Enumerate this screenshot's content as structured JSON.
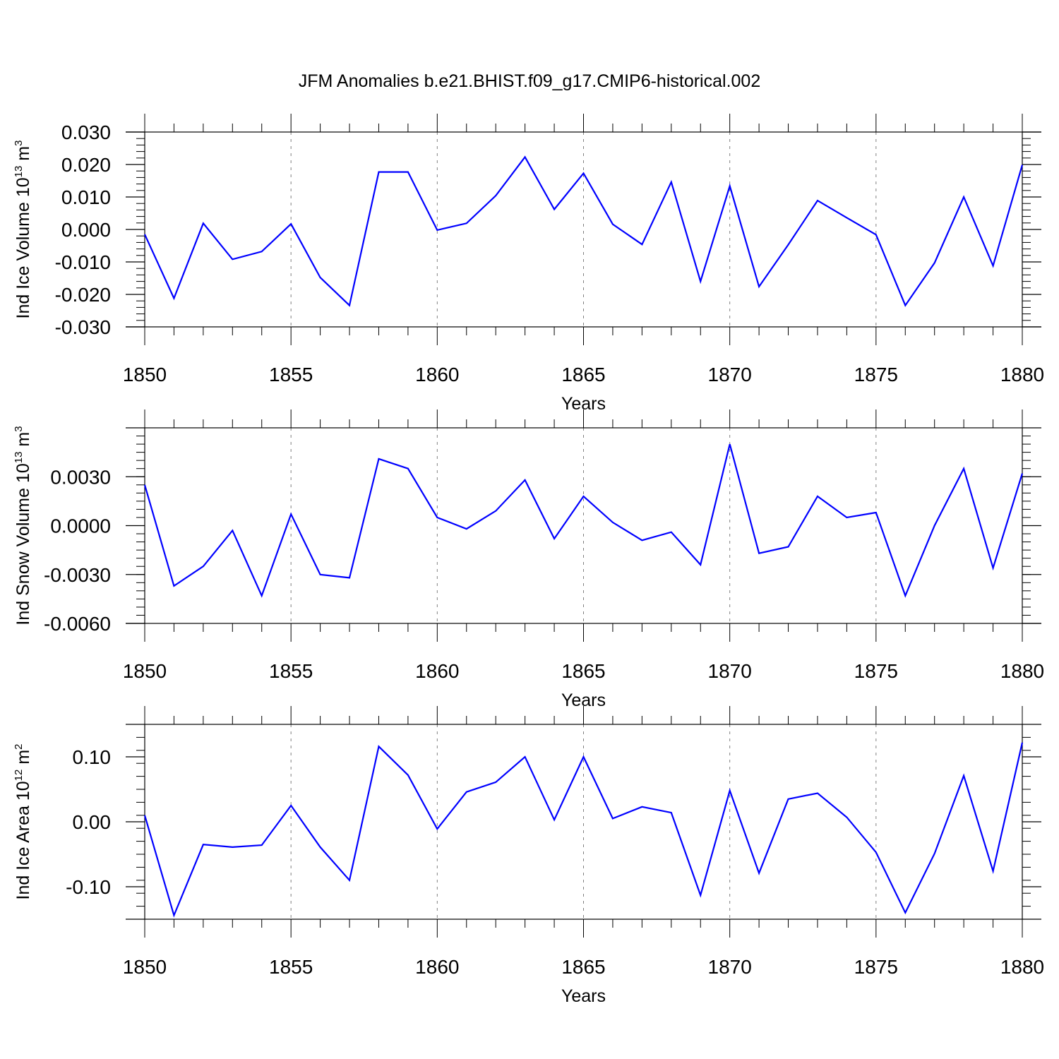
{
  "title": "JFM Anomalies b.e21.BHIST.f09_g17.CMIP6-historical.002",
  "colors": {
    "line": "#0000ff",
    "axis": "#000000",
    "grid": "#808080"
  },
  "chart_data": [
    {
      "type": "line",
      "ylabel": {
        "prefix": "Ind Ice Volume 10",
        "exp1": "13",
        "mid": " m",
        "exp2": "3"
      },
      "xlabel": "Years",
      "xlim": [
        1850,
        1880
      ],
      "ylim": [
        -0.03,
        0.03
      ],
      "x_ticks": [
        "1850",
        "1855",
        "1860",
        "1865",
        "1870",
        "1875",
        "1880"
      ],
      "y_ticks": [
        {
          "value": 0.03,
          "label": "0.030"
        },
        {
          "value": 0.02,
          "label": "0.020"
        },
        {
          "value": 0.01,
          "label": "0.010"
        },
        {
          "value": 0.0,
          "label": "0.000"
        },
        {
          "value": -0.01,
          "label": "-0.010"
        },
        {
          "value": -0.02,
          "label": "-0.020"
        },
        {
          "value": -0.03,
          "label": "-0.030"
        }
      ],
      "y_minor_step": 0.002,
      "grid": "vertical-dashed",
      "x": [
        1850,
        1851,
        1852,
        1853,
        1854,
        1855,
        1856,
        1857,
        1858,
        1859,
        1860,
        1861,
        1862,
        1863,
        1864,
        1865,
        1866,
        1867,
        1868,
        1869,
        1870,
        1871,
        1872,
        1873,
        1874,
        1875,
        1876,
        1877,
        1878,
        1879,
        1880
      ],
      "values": [
        -0.0015,
        -0.0212,
        0.0019,
        -0.0092,
        -0.0068,
        0.0017,
        -0.0148,
        -0.0234,
        0.0177,
        0.0177,
        -0.0002,
        0.0019,
        0.0104,
        0.0223,
        0.0062,
        0.0173,
        0.0016,
        -0.0046,
        0.0146,
        -0.016,
        0.0134,
        -0.0176,
        -0.0047,
        0.0089,
        0.0036,
        -0.0016,
        -0.0234,
        -0.0103,
        0.01,
        -0.0112,
        0.0199
      ]
    },
    {
      "type": "line",
      "ylabel": {
        "prefix": "Ind Snow Volume 10",
        "exp1": "13",
        "mid": " m",
        "exp2": "3"
      },
      "xlabel": "Years",
      "xlim": [
        1850,
        1880
      ],
      "ylim": [
        -0.006,
        0.006
      ],
      "x_ticks": [
        "1850",
        "1855",
        "1860",
        "1865",
        "1870",
        "1875",
        "1880"
      ],
      "y_ticks": [
        {
          "value": 0.003,
          "label": "0.0030"
        },
        {
          "value": 0.0,
          "label": "0.0000"
        },
        {
          "value": -0.003,
          "label": "-0.0030"
        },
        {
          "value": -0.006,
          "label": "-0.0060"
        }
      ],
      "y_minor_step": 0.0005,
      "grid": "vertical-dashed",
      "x": [
        1850,
        1851,
        1852,
        1853,
        1854,
        1855,
        1856,
        1857,
        1858,
        1859,
        1860,
        1861,
        1862,
        1863,
        1864,
        1865,
        1866,
        1867,
        1868,
        1869,
        1870,
        1871,
        1872,
        1873,
        1874,
        1875,
        1876,
        1877,
        1878,
        1879,
        1880
      ],
      "values": [
        0.0025,
        -0.0037,
        -0.0025,
        -0.0003,
        -0.0043,
        0.0007,
        -0.003,
        -0.0032,
        0.0041,
        0.0035,
        0.0005,
        -0.0002,
        0.0009,
        0.0028,
        -0.0008,
        0.0018,
        0.0002,
        -0.0009,
        -0.0004,
        -0.0024,
        0.005,
        -0.0017,
        -0.0013,
        0.0018,
        0.0005,
        0.0008,
        -0.0043,
        0.0,
        0.0035,
        -0.0026,
        0.0032
      ]
    },
    {
      "type": "line",
      "ylabel": {
        "prefix": "Ind Ice Area 10",
        "exp1": "12",
        "mid": " m",
        "exp2": "2"
      },
      "xlabel": "Years",
      "xlim": [
        1850,
        1880
      ],
      "ylim": [
        -0.15,
        0.15
      ],
      "x_ticks": [
        "1850",
        "1855",
        "1860",
        "1865",
        "1870",
        "1875",
        "1880"
      ],
      "y_ticks": [
        {
          "value": 0.1,
          "label": "0.10"
        },
        {
          "value": 0.0,
          "label": "0.00"
        },
        {
          "value": -0.1,
          "label": "-0.10"
        }
      ],
      "y_minor_step": 0.02,
      "grid": "vertical-dashed",
      "x": [
        1850,
        1851,
        1852,
        1853,
        1854,
        1855,
        1856,
        1857,
        1858,
        1859,
        1860,
        1861,
        1862,
        1863,
        1864,
        1865,
        1866,
        1867,
        1868,
        1869,
        1870,
        1871,
        1872,
        1873,
        1874,
        1875,
        1876,
        1877,
        1878,
        1879,
        1880
      ],
      "values": [
        0.01,
        -0.144,
        -0.035,
        -0.039,
        -0.036,
        0.025,
        -0.039,
        -0.09,
        0.116,
        0.072,
        -0.011,
        0.046,
        0.061,
        0.1,
        0.003,
        0.1,
        0.005,
        0.023,
        0.014,
        -0.113,
        0.048,
        -0.079,
        0.035,
        0.044,
        0.007,
        -0.047,
        -0.14,
        -0.049,
        0.071,
        -0.076,
        0.122
      ]
    }
  ]
}
